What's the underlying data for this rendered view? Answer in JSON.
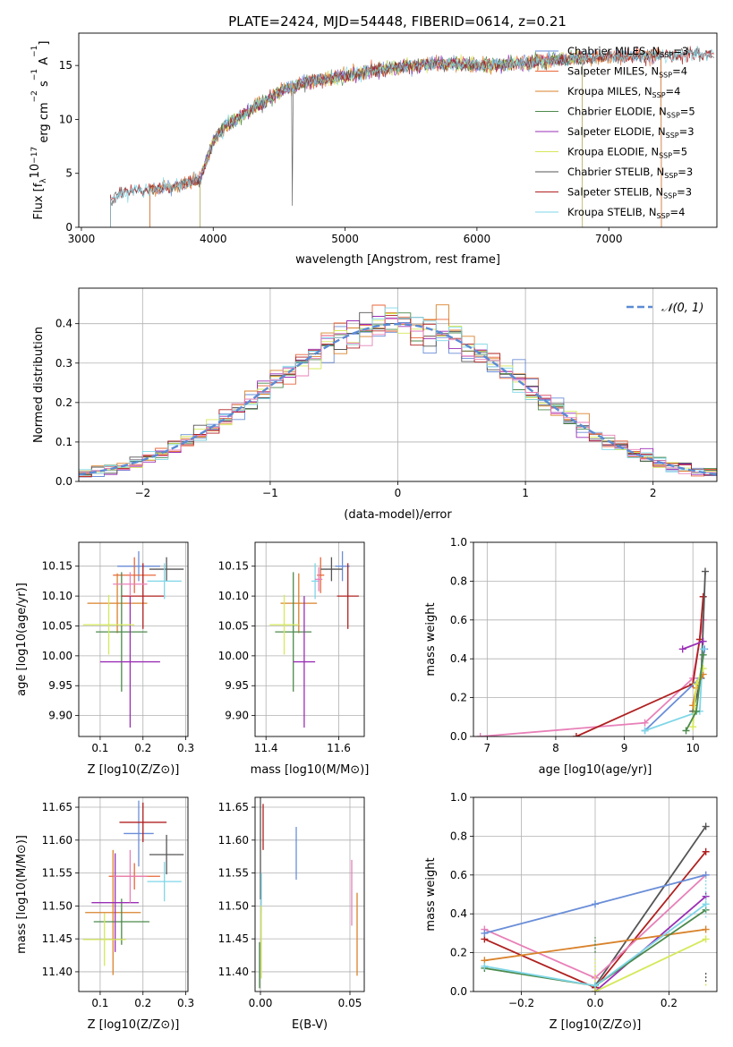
{
  "figure_title": "PLATE=2424, MJD=54448, FIBERID=0614, z=0.21",
  "colors": {
    "chabrier_miles": "#6a8ed8",
    "salpeter_miles": "#e8663a",
    "kroupa_miles": "#d9822b",
    "chabrier_elodie": "#4c8a4c",
    "salpeter_elodie": "#9a2fb5",
    "kroupa_elodie": "#d6e85a",
    "chabrier_stelib": "#555555",
    "salpeter_stelib": "#b02020",
    "kroupa_stelib": "#7fd6e8",
    "pink": "#e880b8"
  },
  "chart_data": [
    {
      "id": "spectrum",
      "type": "line",
      "title": "PLATE=2424, MJD=54448, FIBERID=0614, z=0.21",
      "xlabel": "wavelength [Angstrom, rest frame]",
      "ylabel_parts": [
        "Flux [f",
        "λ",
        "10",
        "−17",
        " erg cm",
        "−2",
        " s",
        "−1",
        " A",
        "−1",
        "]"
      ],
      "xlim": [
        2980,
        7820
      ],
      "ylim": [
        0,
        18
      ],
      "xticks": [
        3000,
        4000,
        5000,
        6000,
        7000
      ],
      "yticks": [
        0,
        5,
        10,
        15
      ],
      "grid": false,
      "legend_position": "upper right",
      "series": [
        {
          "name": "Chabrier MILES, N_SSP=3",
          "label_main": "Chabrier MILES, N",
          "label_sub": "SSP",
          "label_tail": "=3",
          "color": "#6a8ed8",
          "start": 3520,
          "end": 7400
        },
        {
          "name": "Salpeter MILES, N_SSP=4",
          "label_main": "Salpeter MILES, N",
          "label_sub": "SSP",
          "label_tail": "=4",
          "color": "#e8663a",
          "start": 3520,
          "end": 7400
        },
        {
          "name": "Kroupa MILES, N_SSP=4",
          "label_main": "Kroupa MILES, N",
          "label_sub": "SSP",
          "label_tail": "=4",
          "color": "#d9822b",
          "start": 3520,
          "end": 7400
        },
        {
          "name": "Chabrier ELODIE, N_SSP=5",
          "label_main": "Chabrier ELODIE, N",
          "label_sub": "SSP",
          "label_tail": "=5",
          "color": "#4c8a4c",
          "start": 3900,
          "end": 6800
        },
        {
          "name": "Salpeter ELODIE, N_SSP=3",
          "label_main": "Salpeter ELODIE, N",
          "label_sub": "SSP",
          "label_tail": "=3",
          "color": "#9a2fb5",
          "start": 3900,
          "end": 6800
        },
        {
          "name": "Kroupa ELODIE, N_SSP=5",
          "label_main": "Kroupa ELODIE, N",
          "label_sub": "SSP",
          "label_tail": "=5",
          "color": "#d6e85a",
          "start": 3900,
          "end": 6800
        },
        {
          "name": "Chabrier STELIB, N_SSP=3",
          "label_main": "Chabrier STELIB, N",
          "label_sub": "SSP",
          "label_tail": "=3",
          "color": "#555555",
          "start": 3220,
          "end": 7800
        },
        {
          "name": "Salpeter STELIB, N_SSP=3",
          "label_main": "Salpeter STELIB, N",
          "label_sub": "SSP",
          "label_tail": "=3",
          "color": "#b02020",
          "start": 3220,
          "end": 7800
        },
        {
          "name": "Kroupa STELIB, N_SSP=4",
          "label_main": "Kroupa STELIB, N",
          "label_sub": "SSP",
          "label_tail": "=4",
          "color": "#7fd6e8",
          "start": 3220,
          "end": 7800
        }
      ],
      "continuum_anchors": {
        "x": [
          3220,
          3300,
          3500,
          3700,
          3900,
          4000,
          4100,
          4300,
          4500,
          4700,
          5000,
          5200,
          5500,
          5800,
          6100,
          6400,
          6700,
          7000,
          7300,
          7600,
          7800
        ],
        "y": [
          2.5,
          3.2,
          3.5,
          3.8,
          4.5,
          8.0,
          9.5,
          11.0,
          12.5,
          13.5,
          14.0,
          14.5,
          15.0,
          15.2,
          15.0,
          15.3,
          15.6,
          15.8,
          15.9,
          16.0,
          16.0
        ]
      }
    },
    {
      "id": "residuals",
      "type": "histogram",
      "xlabel": "(data-model)/error",
      "ylabel": "Normed distribution",
      "xlim": [
        -2.5,
        2.5
      ],
      "ylim": [
        0,
        0.49
      ],
      "xticks": [
        -2,
        -1,
        0,
        1,
        2
      ],
      "yticks": [
        0.0,
        0.1,
        0.2,
        0.3,
        0.4
      ],
      "grid": true,
      "legend_position": "upper right",
      "reference_curve_label": "𝒩(0, 1)",
      "reference_curve_color": "#5b8bd4",
      "bin_width": 0.1,
      "bin_start": -2.5
    },
    {
      "id": "age_vs_Z",
      "type": "scatter",
      "xlabel": "Z [log10(Z/Z⊙)]",
      "ylabel": "age  [log10(age/yr)]",
      "xlim": [
        0.05,
        0.305
      ],
      "ylim": [
        9.865,
        10.19
      ],
      "xticks": [
        0.1,
        0.2,
        0.3
      ],
      "yticks": [
        9.9,
        9.95,
        10.0,
        10.05,
        10.1,
        10.15
      ],
      "grid": true,
      "points": [
        {
          "color": "#6a8ed8",
          "x": 0.19,
          "y": 10.15,
          "xerr": 0.05,
          "yerr": 0.025
        },
        {
          "color": "#e8663a",
          "x": 0.18,
          "y": 10.135,
          "xerr": 0.05,
          "yerr": 0.03
        },
        {
          "color": "#d9822b",
          "x": 0.14,
          "y": 10.088,
          "xerr": 0.07,
          "yerr": 0.05
        },
        {
          "color": "#4c8a4c",
          "x": 0.15,
          "y": 10.04,
          "xerr": 0.06,
          "yerr": 0.1
        },
        {
          "color": "#9a2fb5",
          "x": 0.17,
          "y": 9.99,
          "xerr": 0.07,
          "yerr": 0.11
        },
        {
          "color": "#d6e85a",
          "x": 0.12,
          "y": 10.052,
          "xerr": 0.06,
          "yerr": 0.05
        },
        {
          "color": "#555555",
          "x": 0.255,
          "y": 10.145,
          "xerr": 0.04,
          "yerr": 0.02
        },
        {
          "color": "#b02020",
          "x": 0.2,
          "y": 10.1,
          "xerr": 0.05,
          "yerr": 0.055
        },
        {
          "color": "#7fd6e8",
          "x": 0.25,
          "y": 10.125,
          "xerr": 0.04,
          "yerr": 0.03
        },
        {
          "color": "#e880b8",
          "x": 0.17,
          "y": 10.12,
          "xerr": 0.04,
          "yerr": 0.02
        }
      ]
    },
    {
      "id": "age_vs_mass",
      "type": "scatter",
      "xlabel": "mass [log10(M/M⊙)]",
      "ylabel": "",
      "xlim": [
        11.37,
        11.67
      ],
      "ylim": [
        9.865,
        10.19
      ],
      "xticks": [
        11.4,
        11.6
      ],
      "yticks": [
        9.9,
        9.95,
        10.0,
        10.05,
        10.1,
        10.15
      ],
      "grid": true,
      "points": [
        {
          "color": "#6a8ed8",
          "x": 11.61,
          "y": 10.15,
          "xerr": 0.02,
          "yerr": 0.025
        },
        {
          "color": "#e8663a",
          "x": 11.55,
          "y": 10.135,
          "xerr": 0.01,
          "yerr": 0.03
        },
        {
          "color": "#d9822b",
          "x": 11.49,
          "y": 10.088,
          "xerr": 0.05,
          "yerr": 0.05
        },
        {
          "color": "#4c8a4c",
          "x": 11.475,
          "y": 10.04,
          "xerr": 0.05,
          "yerr": 0.1
        },
        {
          "color": "#9a2fb5",
          "x": 11.505,
          "y": 9.99,
          "xerr": 0.03,
          "yerr": 0.11
        },
        {
          "color": "#d6e85a",
          "x": 11.45,
          "y": 10.052,
          "xerr": 0.04,
          "yerr": 0.05
        },
        {
          "color": "#555555",
          "x": 11.58,
          "y": 10.145,
          "xerr": 0.03,
          "yerr": 0.02
        },
        {
          "color": "#b02020",
          "x": 11.625,
          "y": 10.1,
          "xerr": 0.03,
          "yerr": 0.055
        },
        {
          "color": "#7fd6e8",
          "x": 11.535,
          "y": 10.125,
          "xerr": 0.01,
          "yerr": 0.03
        },
        {
          "color": "#e880b8",
          "x": 11.545,
          "y": 10.128,
          "xerr": 0.01,
          "yerr": 0.02
        }
      ]
    },
    {
      "id": "weight_vs_age",
      "type": "line",
      "xlabel": "age  [log10(age/yr)]",
      "ylabel": "mass weight",
      "xlim": [
        6.8,
        10.35
      ],
      "ylim": [
        0,
        1.0
      ],
      "xticks": [
        7,
        8,
        9,
        10
      ],
      "yticks": [
        0.0,
        0.2,
        0.4,
        0.6,
        0.8,
        1.0
      ],
      "grid": true,
      "series": [
        {
          "color": "#e880b8",
          "x": [
            6.9,
            9.3,
            10.0,
            10.15
          ],
          "y": [
            0.0,
            0.07,
            0.3,
            0.6
          ]
        },
        {
          "color": "#b02020",
          "x": [
            8.3,
            10.0,
            10.1,
            10.15
          ],
          "y": [
            0.0,
            0.27,
            0.5,
            0.72
          ]
        },
        {
          "color": "#555555",
          "x": [
            10.0,
            10.12,
            10.18
          ],
          "y": [
            0.13,
            0.3,
            0.85
          ]
        },
        {
          "color": "#9a2fb5",
          "x": [
            9.85,
            10.15
          ],
          "y": [
            0.45,
            0.49
          ]
        },
        {
          "color": "#6a8ed8",
          "x": [
            9.3,
            10.1,
            10.17
          ],
          "y": [
            0.03,
            0.3,
            0.45
          ]
        },
        {
          "color": "#7fd6e8",
          "x": [
            9.3,
            10.1,
            10.15
          ],
          "y": [
            0.03,
            0.13,
            0.45
          ]
        },
        {
          "color": "#d9822b",
          "x": [
            10.0,
            10.05,
            10.15
          ],
          "y": [
            0.16,
            0.25,
            0.32
          ]
        },
        {
          "color": "#d6e85a",
          "x": [
            10.0,
            10.05,
            10.15
          ],
          "y": [
            0.05,
            0.27,
            0.35
          ]
        },
        {
          "color": "#4c8a4c",
          "x": [
            9.9,
            10.05,
            10.15
          ],
          "y": [
            0.03,
            0.13,
            0.42
          ]
        }
      ]
    },
    {
      "id": "mass_vs_Z",
      "type": "scatter",
      "xlabel": "Z [log10(Z/Z⊙)]",
      "ylabel": "mass [log10(M/M⊙)]",
      "xlim": [
        0.05,
        0.305
      ],
      "ylim": [
        11.37,
        11.665
      ],
      "xticks": [
        0.1,
        0.2,
        0.3
      ],
      "yticks": [
        11.4,
        11.45,
        11.5,
        11.55,
        11.6,
        11.65
      ],
      "grid": true,
      "points": [
        {
          "color": "#6a8ed8",
          "x": 0.19,
          "y": 11.61,
          "xerr": 0.035,
          "yerr": 0.05
        },
        {
          "color": "#e8663a",
          "x": 0.18,
          "y": 11.545,
          "xerr": 0.06,
          "yerr": 0.02
        },
        {
          "color": "#d9822b",
          "x": 0.13,
          "y": 11.49,
          "xerr": 0.065,
          "yerr": 0.095
        },
        {
          "color": "#4c8a4c",
          "x": 0.15,
          "y": 11.476,
          "xerr": 0.065,
          "yerr": 0.035
        },
        {
          "color": "#9a2fb5",
          "x": 0.135,
          "y": 11.505,
          "xerr": 0.055,
          "yerr": 0.075
        },
        {
          "color": "#d6e85a",
          "x": 0.11,
          "y": 11.449,
          "xerr": 0.05,
          "yerr": 0.04
        },
        {
          "color": "#555555",
          "x": 0.255,
          "y": 11.578,
          "xerr": 0.04,
          "yerr": 0.03
        },
        {
          "color": "#b02020",
          "x": 0.2,
          "y": 11.627,
          "xerr": 0.055,
          "yerr": 0.03
        },
        {
          "color": "#7fd6e8",
          "x": 0.25,
          "y": 11.537,
          "xerr": 0.04,
          "yerr": 0.03
        },
        {
          "color": "#e880b8",
          "x": 0.17,
          "y": 11.545,
          "xerr": 0.04,
          "yerr": 0.04
        }
      ]
    },
    {
      "id": "mass_vs_ebv",
      "type": "scatter",
      "xlabel": "E(B-V)",
      "ylabel": "",
      "xlim": [
        -0.003,
        0.058
      ],
      "ylim": [
        11.37,
        11.665
      ],
      "xticks": [
        0.0,
        0.05
      ],
      "yticks": [
        11.4,
        11.45,
        11.5,
        11.55,
        11.6,
        11.65
      ],
      "grid": true,
      "points": [
        {
          "color": "#6a8ed8",
          "x": 0.02,
          "y": 11.58,
          "xerr": 0,
          "yerr": 0.04
        },
        {
          "color": "#b02020",
          "x": 0.0015,
          "y": 11.62,
          "xerr": 0,
          "yerr": 0.035
        },
        {
          "color": "#555555",
          "x": 0.0,
          "y": 11.59,
          "xerr": 0,
          "yerr": 0.08
        },
        {
          "color": "#e880b8",
          "x": 0.051,
          "y": 11.52,
          "xerr": 0,
          "yerr": 0.05
        },
        {
          "color": "#d9822b",
          "x": 0.054,
          "y": 11.457,
          "xerr": 0,
          "yerr": 0.063
        },
        {
          "color": "#7fd6e8",
          "x": 0.0005,
          "y": 11.52,
          "xerr": 0,
          "yerr": 0.03
        },
        {
          "color": "#d6e85a",
          "x": 0.0005,
          "y": 11.445,
          "xerr": 0,
          "yerr": 0.055
        },
        {
          "color": "#4c8a4c",
          "x": -0.0005,
          "y": 11.41,
          "xerr": 0,
          "yerr": 0.035
        }
      ]
    },
    {
      "id": "weight_vs_Z",
      "type": "line",
      "xlabel": "Z [log10(Z/Z⊙)]",
      "ylabel": "mass weight",
      "xlim": [
        -0.33,
        0.33
      ],
      "ylim": [
        0,
        1.0
      ],
      "xticks": [
        -0.2,
        0.0,
        0.2
      ],
      "yticks": [
        0.0,
        0.2,
        0.4,
        0.6,
        0.8,
        1.0
      ],
      "grid": true,
      "series": [
        {
          "color": "#555555",
          "x": [
            0.0,
            0.3
          ],
          "y": [
            0.03,
            0.85
          ]
        },
        {
          "color": "#b02020",
          "x": [
            -0.3,
            0.0,
            0.3
          ],
          "y": [
            0.27,
            0.02,
            0.72
          ]
        },
        {
          "color": "#e880b8",
          "x": [
            -0.3,
            0.0,
            0.3
          ],
          "y": [
            0.32,
            0.07,
            0.6
          ]
        },
        {
          "color": "#6a8ed8",
          "x": [
            -0.3,
            0.0,
            0.3
          ],
          "y": [
            0.3,
            0.45,
            0.6
          ]
        },
        {
          "color": "#9a2fb5",
          "x": [
            0.0,
            0.3
          ],
          "y": [
            0.0,
            0.49
          ]
        },
        {
          "color": "#d9822b",
          "x": [
            -0.3,
            0.3
          ],
          "y": [
            0.16,
            0.32
          ]
        },
        {
          "color": "#4c8a4c",
          "x": [
            -0.3,
            0.0,
            0.3
          ],
          "y": [
            0.12,
            0.03,
            0.42
          ]
        },
        {
          "color": "#7fd6e8",
          "x": [
            -0.3,
            0.0,
            0.3
          ],
          "y": [
            0.13,
            0.03,
            0.45
          ]
        },
        {
          "color": "#d6e85a",
          "x": [
            0.0,
            0.3
          ],
          "y": [
            0.0,
            0.27
          ]
        }
      ],
      "vertical_markers": [
        {
          "color": "#4c8a4c",
          "x": 0.0,
          "y": [
            0.2,
            0.28
          ]
        },
        {
          "color": "#d6e85a",
          "x": 0.0,
          "y": [
            0.05,
            0.17
          ]
        },
        {
          "color": "#7fd6e8",
          "x": 0.3,
          "y": [
            0.38,
            0.6
          ]
        },
        {
          "color": "#555555",
          "x": 0.3,
          "y": [
            0.05,
            0.1
          ]
        },
        {
          "color": "#d6e85a",
          "x": 0.3,
          "y": [
            0.03,
            0.05
          ]
        }
      ]
    }
  ]
}
